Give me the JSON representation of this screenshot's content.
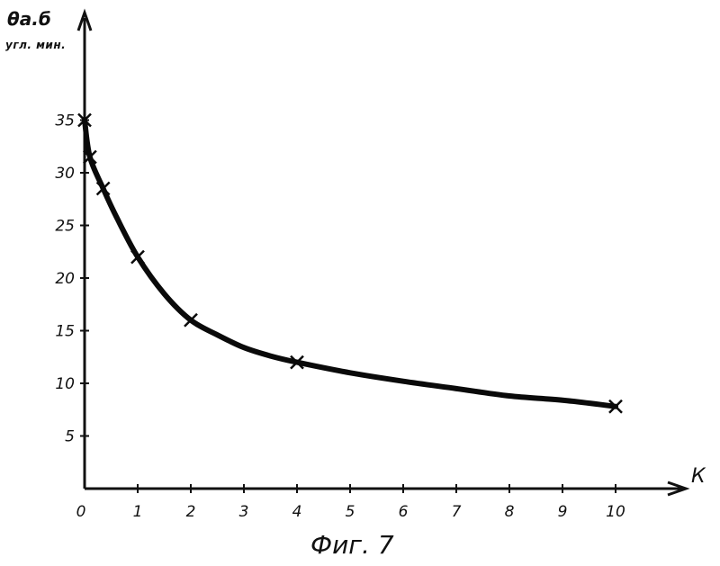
{
  "chart_data": {
    "type": "line",
    "ylabel": "θа.б",
    "yunit": "угл. мин.",
    "xlabel": "К",
    "caption": "Фиг. 7",
    "xlim": [
      0,
      10
    ],
    "ylim": [
      0,
      35
    ],
    "x_ticks": [
      "0",
      "1",
      "2",
      "3",
      "4",
      "5",
      "6",
      "7",
      "8",
      "9",
      "10"
    ],
    "y_ticks": [
      "5",
      "10",
      "15",
      "20",
      "25",
      "30",
      "35"
    ],
    "grid": false,
    "series": [
      {
        "curve": [
          [
            0,
            35
          ],
          [
            0.1,
            31.5
          ],
          [
            0.35,
            28.5
          ],
          [
            0.6,
            25.8
          ],
          [
            1,
            22
          ],
          [
            1.5,
            18.5
          ],
          [
            2,
            16
          ],
          [
            2.5,
            14.6
          ],
          [
            3,
            13.4
          ],
          [
            3.5,
            12.6
          ],
          [
            4,
            12
          ],
          [
            5,
            11
          ],
          [
            6,
            10.2
          ],
          [
            7,
            9.5
          ],
          [
            8,
            8.8
          ],
          [
            9,
            8.4
          ],
          [
            10,
            7.8
          ]
        ],
        "markers": [
          [
            0,
            35
          ],
          [
            0.1,
            31.5
          ],
          [
            0.35,
            28.5
          ],
          [
            1,
            22
          ],
          [
            2,
            16
          ],
          [
            4,
            12
          ],
          [
            10,
            7.8
          ]
        ]
      }
    ]
  }
}
